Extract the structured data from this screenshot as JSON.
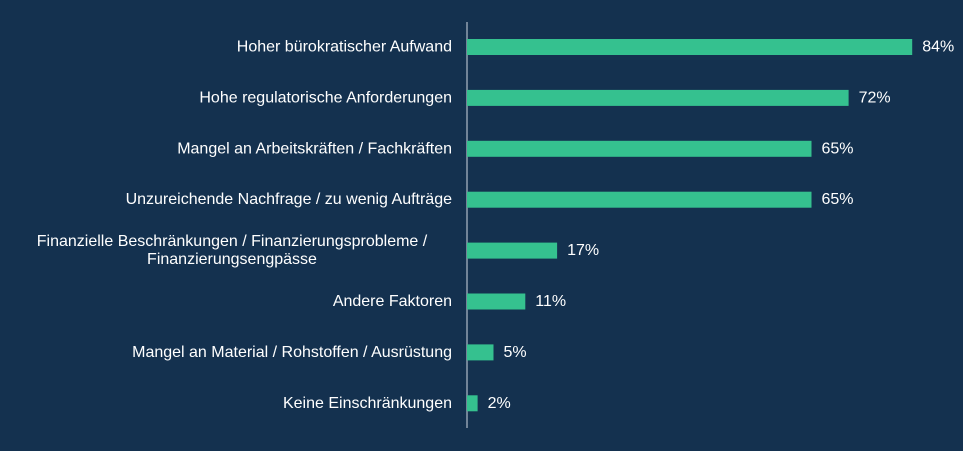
{
  "colors": {
    "background": "#14314f",
    "bar": "#35c18f",
    "axis": "#d0d8e0",
    "text": "#ffffff"
  },
  "chart_data": {
    "type": "bar",
    "orientation": "horizontal",
    "title": "",
    "xlabel": "",
    "ylabel": "",
    "xlim": [
      0,
      100
    ],
    "grid": false,
    "value_suffix": "%",
    "categories": [
      [
        "Hoher bürokratischer Aufwand"
      ],
      [
        "Hohe regulatorische Anforderungen"
      ],
      [
        "Mangel an Arbeitskräften / Fachkräften"
      ],
      [
        "Unzureichende Nachfrage / zu wenig Aufträge"
      ],
      [
        "Finanzielle Beschränkungen / Finanzierungsprobleme /",
        "Finanzierungsengpässe"
      ],
      [
        "Andere Faktoren"
      ],
      [
        "Mangel an Material / Rohstoffen / Ausrüstung"
      ],
      [
        "Keine Einschränkungen"
      ]
    ],
    "values": [
      84,
      72,
      65,
      65,
      17,
      11,
      5,
      2
    ],
    "value_labels": [
      "84%",
      "72%",
      "65%",
      "65%",
      "17%",
      "11%",
      "5%",
      "2%"
    ]
  }
}
